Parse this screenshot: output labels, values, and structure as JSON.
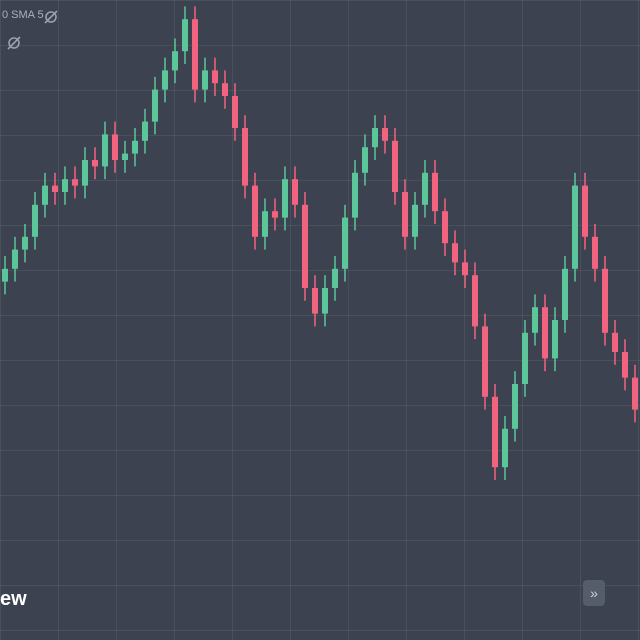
{
  "chart_data": {
    "type": "candlestick",
    "indicator_label": "0 SMA 5",
    "logo_text": "ew",
    "up_color": "#5cc69b",
    "down_color": "#f2637f",
    "ylim": [
      0,
      100
    ],
    "open": [
      56,
      58,
      61,
      63,
      68,
      71,
      70,
      72,
      71,
      75,
      74,
      79,
      75,
      76,
      78,
      81,
      86,
      89,
      92,
      97,
      86,
      89,
      87,
      85,
      80,
      71,
      63,
      67,
      66,
      72,
      68,
      55,
      51,
      55,
      58,
      66,
      73,
      77,
      80,
      78,
      70,
      63,
      68,
      73,
      67,
      62,
      59,
      57,
      49,
      38,
      27,
      33,
      40,
      48,
      52,
      44,
      50,
      58,
      71,
      63,
      58,
      48,
      45,
      41
    ],
    "high": [
      60,
      63,
      65,
      70,
      73,
      73,
      74,
      74,
      77,
      77,
      81,
      81,
      78,
      80,
      83,
      88,
      91,
      94,
      99,
      99,
      91,
      91,
      89,
      87,
      82,
      73,
      69,
      69,
      74,
      74,
      70,
      57,
      57,
      60,
      68,
      75,
      79,
      82,
      82,
      80,
      72,
      70,
      75,
      75,
      69,
      64,
      61,
      59,
      51,
      40,
      35,
      42,
      50,
      54,
      54,
      52,
      60,
      73,
      73,
      65,
      60,
      50,
      47,
      43
    ],
    "low": [
      54,
      56,
      59,
      61,
      66,
      68,
      68,
      69,
      69,
      72,
      72,
      73,
      73,
      74,
      76,
      79,
      84,
      87,
      90,
      84,
      84,
      85,
      83,
      78,
      69,
      61,
      61,
      64,
      64,
      66,
      53,
      49,
      49,
      53,
      56,
      64,
      71,
      75,
      76,
      68,
      61,
      61,
      66,
      65,
      60,
      57,
      55,
      47,
      36,
      25,
      25,
      31,
      38,
      46,
      42,
      42,
      48,
      56,
      61,
      56,
      46,
      43,
      39,
      34
    ],
    "close": [
      58,
      61,
      63,
      68,
      71,
      70,
      72,
      71,
      75,
      74,
      79,
      75,
      76,
      78,
      81,
      86,
      89,
      92,
      97,
      86,
      89,
      87,
      85,
      80,
      71,
      63,
      67,
      66,
      72,
      68,
      55,
      51,
      55,
      58,
      66,
      73,
      77,
      80,
      78,
      70,
      63,
      68,
      73,
      67,
      62,
      59,
      57,
      49,
      38,
      27,
      33,
      40,
      48,
      52,
      44,
      50,
      58,
      71,
      63,
      58,
      48,
      45,
      41,
      36
    ]
  }
}
